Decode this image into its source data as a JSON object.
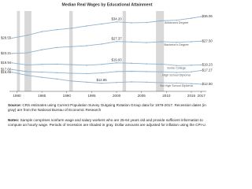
{
  "chart_data": {
    "type": "line",
    "title": "Median Real Wages by Educational Attainment",
    "x": [
      1979,
      1982,
      1985,
      1988,
      1991,
      1994,
      1997,
      2000,
      2003,
      2006,
      2009,
      2012,
      2015,
      2017
    ],
    "xlim": [
      1978.5,
      2018
    ],
    "xticks": [
      1980,
      1985,
      1990,
      1995,
      2000,
      2005,
      2010,
      2015,
      2017
    ],
    "ylim": [
      10,
      38
    ],
    "recessions": [
      [
        1980,
        1980.6
      ],
      [
        1981.5,
        1982.9
      ],
      [
        1990.5,
        1991.2
      ],
      [
        2001.2,
        2001.9
      ],
      [
        2007.9,
        2009.5
      ]
    ],
    "recession_color": "#d9d9d9",
    "series": [
      {
        "name": "Advanced Degree",
        "color": "#8fb3cf",
        "values": [
          28.55,
          29.5,
          30.8,
          31.5,
          32.0,
          32.8,
          33.5,
          34.2,
          33.9,
          34.0,
          34.6,
          34.8,
          35.5,
          36.06
        ],
        "value_labels": [
          "$28.55",
          null,
          null,
          null,
          null,
          null,
          null,
          "$34.20",
          null,
          null,
          null,
          null,
          null,
          "$36.06"
        ]
      },
      {
        "name": "Bachelor's Degree",
        "color": "#8fb3cf",
        "values": [
          23.21,
          23.4,
          24.5,
          25.3,
          25.6,
          25.9,
          26.5,
          27.37,
          27.2,
          27.0,
          27.3,
          27.1,
          27.3,
          27.5
        ],
        "value_labels": [
          "$23.21",
          null,
          null,
          null,
          null,
          null,
          null,
          "$27.37",
          null,
          null,
          null,
          null,
          null,
          "$27.50"
        ]
      },
      {
        "name": "Some College",
        "color": "#8fb3cf",
        "values": [
          19.94,
          19.2,
          19.4,
          19.5,
          19.3,
          19.1,
          19.4,
          19.93,
          19.8,
          19.6,
          19.5,
          19.0,
          19.1,
          19.23
        ],
        "value_labels": [
          "$19.94",
          null,
          null,
          null,
          null,
          null,
          null,
          "$19.93",
          null,
          null,
          null,
          null,
          null,
          "$19.23"
        ]
      },
      {
        "name": "High School Diploma",
        "color": "#8fb3cf",
        "values": [
          17.6,
          16.9,
          16.7,
          16.5,
          16.3,
          16.2,
          16.4,
          16.9,
          17.0,
          16.9,
          16.8,
          16.6,
          16.8,
          17.27
        ],
        "value_labels": [
          "$17.60",
          null,
          null,
          null,
          null,
          null,
          null,
          null,
          null,
          null,
          null,
          null,
          null,
          "$17.27"
        ]
      },
      {
        "name": "No High School Diploma",
        "color": "#8fb3cf",
        "values": [
          16.66,
          15.6,
          14.9,
          14.3,
          13.6,
          13.2,
          12.86,
          13.1,
          13.3,
          13.2,
          13.0,
          12.9,
          12.7,
          12.5
        ],
        "value_labels": [
          "$16.66",
          null,
          null,
          null,
          null,
          null,
          "$12.86",
          null,
          null,
          null,
          null,
          null,
          null,
          "$12.50"
        ]
      }
    ],
    "source_label": "Source:",
    "source": "CRS estimates using Current Population Survey Outgoing Rotation Group data for 1979-2017. Recession dates (in gray) are from the National Bureau of Economic Research",
    "notes_label": "Notes:",
    "notes": "Sample comprises nonfarm wage and salary workers who are 25-64 years old and provide sufficient information to compute an hourly wage. Periods of recession are shaded in gray. Dollar amounts are adjusted for inflation using the CPI-U."
  }
}
